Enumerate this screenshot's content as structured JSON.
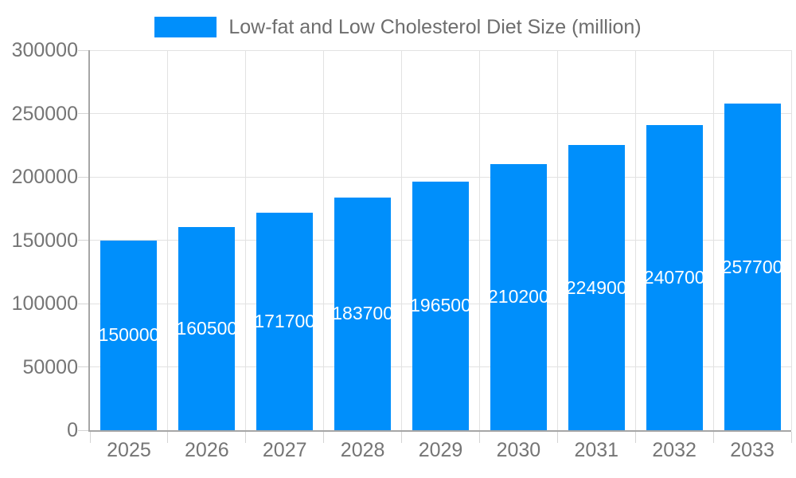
{
  "chart_data": {
    "type": "bar",
    "title": "Low-fat and Low Cholesterol Diet Size (million)",
    "categories": [
      "2025",
      "2026",
      "2027",
      "2028",
      "2029",
      "2030",
      "2031",
      "2032",
      "2033"
    ],
    "values": [
      150000,
      160500,
      171700,
      183700,
      196500,
      210200,
      224900,
      240700,
      257700
    ],
    "data_labels": [
      "150000",
      "160500",
      "171700",
      "183700",
      "196500",
      "210200",
      "224900",
      "240700",
      "257700"
    ],
    "y_tick_labels": [
      "0",
      "50000",
      "100000",
      "150000",
      "200000",
      "250000",
      "300000"
    ],
    "ylim": [
      0,
      300000
    ],
    "y_tick_step": 50000,
    "xlabel": "",
    "ylabel": "",
    "grid": true,
    "legend_position": "top",
    "legend_marker": "rectangle",
    "colors": {
      "bar": "#008FFB",
      "grid": "#e2e2e2",
      "axis_line": "#a6a6a6",
      "axis_label": "#757575",
      "title": "#6d6d6d",
      "data_label": "#ffffff",
      "background": "#ffffff"
    }
  }
}
